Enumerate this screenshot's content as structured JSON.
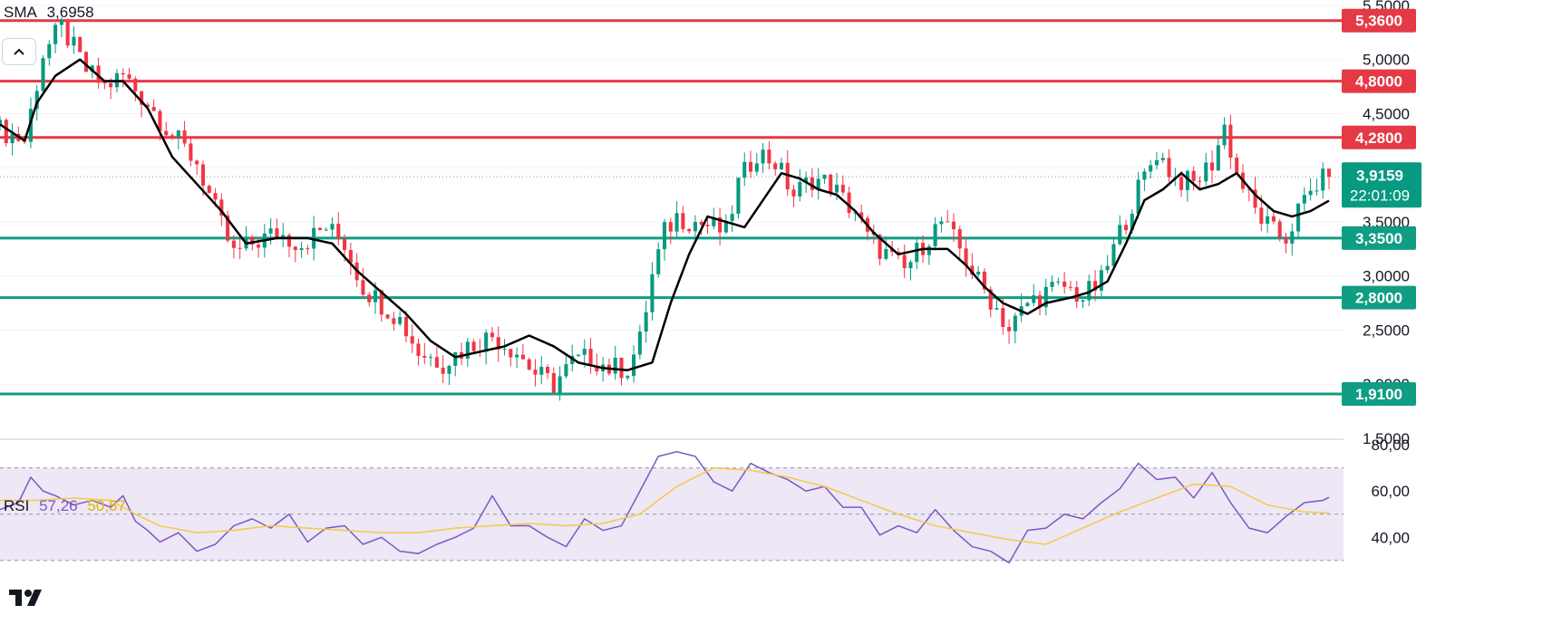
{
  "price_legend": {
    "name": "SMA",
    "value": "3,6958"
  },
  "rsi_legend": {
    "name": "RSI",
    "value": "57,26",
    "ma_value": "50,57",
    "value_color": "#7e57c2",
    "ma_color": "#f7c948"
  },
  "colors": {
    "up": "#089981",
    "down": "#f23645",
    "sma": "#000000",
    "resistance": "#e53945",
    "support": "#0f9d83",
    "rsi_line": "#7e57c2",
    "rsi_ma": "#f7c948",
    "rsi_band": "#ede7f6"
  },
  "icons": {
    "collapse": "chevron-up-icon",
    "logo": "tradingview-logo"
  },
  "chart_data": [
    {
      "type": "candlestick",
      "title": "",
      "ylim": [
        1.5,
        5.55
      ],
      "y_ticks": [
        "1,5000",
        "2,0000",
        "2,5000",
        "3,0000",
        "3,5000",
        "4,0000",
        "4,5000",
        "5,0000",
        "5,5000"
      ],
      "last_price": {
        "label": "3,9159",
        "countdown": "22:01:09",
        "value": 3.9159
      },
      "levels": [
        {
          "value": 5.36,
          "label": "5,3600",
          "kind": "resistance"
        },
        {
          "value": 4.8,
          "label": "4,8000",
          "kind": "resistance"
        },
        {
          "value": 4.28,
          "label": "4,2800",
          "kind": "resistance"
        },
        {
          "value": 3.35,
          "label": "3,3500",
          "kind": "support"
        },
        {
          "value": 2.8,
          "label": "2,8000",
          "kind": "support"
        },
        {
          "value": 1.91,
          "label": "1,9100",
          "kind": "support"
        }
      ],
      "close_path": [
        [
          0,
          4.35
        ],
        [
          4,
          4.25
        ],
        [
          7,
          5.05
        ],
        [
          10,
          5.3
        ],
        [
          14,
          4.9
        ],
        [
          17,
          4.75
        ],
        [
          20,
          4.85
        ],
        [
          24,
          4.6
        ],
        [
          28,
          4.3
        ],
        [
          32,
          4.05
        ],
        [
          35,
          3.6
        ],
        [
          38,
          3.2
        ],
        [
          41,
          3.3
        ],
        [
          45,
          3.4
        ],
        [
          49,
          3.3
        ],
        [
          53,
          3.45
        ],
        [
          56,
          3.3
        ],
        [
          59,
          2.9
        ],
        [
          62,
          2.75
        ],
        [
          65,
          2.6
        ],
        [
          68,
          2.3
        ],
        [
          72,
          2.2
        ],
        [
          76,
          2.35
        ],
        [
          80,
          2.45
        ],
        [
          84,
          2.3
        ],
        [
          87,
          2.1
        ],
        [
          90,
          2.0
        ],
        [
          93,
          2.2
        ],
        [
          96,
          2.25
        ],
        [
          99,
          2.15
        ],
        [
          102,
          2.15
        ],
        [
          104,
          2.4
        ],
        [
          106,
          3.0
        ],
        [
          108,
          3.4
        ],
        [
          110,
          3.55
        ],
        [
          113,
          3.5
        ],
        [
          116,
          3.45
        ],
        [
          118,
          3.4
        ],
        [
          120,
          3.85
        ],
        [
          123,
          4.15
        ],
        [
          126,
          4.05
        ],
        [
          129,
          3.75
        ],
        [
          132,
          3.9
        ],
        [
          135,
          3.85
        ],
        [
          137,
          3.7
        ],
        [
          139,
          3.6
        ],
        [
          141,
          3.35
        ],
        [
          144,
          3.2
        ],
        [
          147,
          3.05
        ],
        [
          150,
          3.3
        ],
        [
          153,
          3.5
        ],
        [
          156,
          3.25
        ],
        [
          159,
          2.95
        ],
        [
          162,
          2.7
        ],
        [
          164,
          2.5
        ],
        [
          167,
          2.75
        ],
        [
          170,
          2.85
        ],
        [
          173,
          2.9
        ],
        [
          176,
          2.8
        ],
        [
          179,
          2.95
        ],
        [
          182,
          3.4
        ],
        [
          185,
          3.8
        ],
        [
          188,
          4.15
        ],
        [
          191,
          3.9
        ],
        [
          194,
          3.85
        ],
        [
          197,
          4.05
        ],
        [
          199,
          4.38
        ],
        [
          201,
          3.95
        ],
        [
          204,
          3.6
        ],
        [
          207,
          3.4
        ],
        [
          209,
          3.35
        ],
        [
          211,
          3.6
        ],
        [
          214,
          3.85
        ],
        [
          216,
          3.9159
        ]
      ],
      "sma_path": [
        [
          0,
          4.4
        ],
        [
          4,
          4.25
        ],
        [
          6,
          4.6
        ],
        [
          9,
          4.85
        ],
        [
          13,
          5.0
        ],
        [
          17,
          4.8
        ],
        [
          20,
          4.8
        ],
        [
          24,
          4.55
        ],
        [
          28,
          4.1
        ],
        [
          32,
          3.85
        ],
        [
          36,
          3.6
        ],
        [
          40,
          3.3
        ],
        [
          45,
          3.35
        ],
        [
          50,
          3.35
        ],
        [
          54,
          3.3
        ],
        [
          58,
          3.05
        ],
        [
          62,
          2.85
        ],
        [
          66,
          2.65
        ],
        [
          70,
          2.4
        ],
        [
          74,
          2.25
        ],
        [
          78,
          2.3
        ],
        [
          82,
          2.35
        ],
        [
          86,
          2.45
        ],
        [
          90,
          2.35
        ],
        [
          94,
          2.2
        ],
        [
          98,
          2.15
        ],
        [
          102,
          2.13
        ],
        [
          106,
          2.2
        ],
        [
          109,
          2.75
        ],
        [
          112,
          3.2
        ],
        [
          115,
          3.55
        ],
        [
          118,
          3.5
        ],
        [
          121,
          3.45
        ],
        [
          124,
          3.7
        ],
        [
          127,
          3.95
        ],
        [
          130,
          3.9
        ],
        [
          133,
          3.8
        ],
        [
          136,
          3.75
        ],
        [
          139,
          3.6
        ],
        [
          142,
          3.4
        ],
        [
          146,
          3.2
        ],
        [
          150,
          3.25
        ],
        [
          154,
          3.25
        ],
        [
          157,
          3.1
        ],
        [
          160,
          2.9
        ],
        [
          163,
          2.75
        ],
        [
          167,
          2.65
        ],
        [
          170,
          2.75
        ],
        [
          174,
          2.8
        ],
        [
          177,
          2.85
        ],
        [
          180,
          2.95
        ],
        [
          183,
          3.3
        ],
        [
          186,
          3.7
        ],
        [
          189,
          3.8
        ],
        [
          192,
          3.95
        ],
        [
          195,
          3.8
        ],
        [
          198,
          3.85
        ],
        [
          201,
          3.95
        ],
        [
          204,
          3.75
        ],
        [
          207,
          3.6
        ],
        [
          210,
          3.55
        ],
        [
          213,
          3.6
        ],
        [
          216,
          3.6958
        ]
      ]
    },
    {
      "type": "line",
      "title": "",
      "ylim": [
        28,
        82
      ],
      "y_ticks": [
        "40,00",
        "60,00",
        "80,00"
      ],
      "bands": [
        30,
        50,
        70
      ],
      "series": [
        {
          "name": "RSI",
          "values": [
            [
              0,
              52
            ],
            [
              3,
              55
            ],
            [
              5,
              66
            ],
            [
              7,
              60
            ],
            [
              9,
              58
            ],
            [
              12,
              54
            ],
            [
              15,
              56
            ],
            [
              18,
              53
            ],
            [
              20,
              58
            ],
            [
              22,
              47
            ],
            [
              24,
              43
            ],
            [
              26,
              38
            ],
            [
              29,
              42
            ],
            [
              32,
              34
            ],
            [
              35,
              37
            ],
            [
              38,
              45
            ],
            [
              41,
              48
            ],
            [
              44,
              44
            ],
            [
              47,
              50
            ],
            [
              50,
              38
            ],
            [
              53,
              44
            ],
            [
              56,
              45
            ],
            [
              59,
              37
            ],
            [
              62,
              40
            ],
            [
              65,
              34
            ],
            [
              68,
              33
            ],
            [
              71,
              37
            ],
            [
              74,
              40
            ],
            [
              77,
              44
            ],
            [
              80,
              58
            ],
            [
              83,
              45
            ],
            [
              86,
              45
            ],
            [
              89,
              40
            ],
            [
              92,
              36
            ],
            [
              95,
              48
            ],
            [
              98,
              43
            ],
            [
              101,
              45
            ],
            [
              104,
              60
            ],
            [
              107,
              75
            ],
            [
              110,
              77
            ],
            [
              113,
              75
            ],
            [
              116,
              64
            ],
            [
              119,
              60
            ],
            [
              122,
              72
            ],
            [
              125,
              68
            ],
            [
              128,
              65
            ],
            [
              131,
              60
            ],
            [
              134,
              62
            ],
            [
              137,
              53
            ],
            [
              140,
              53
            ],
            [
              143,
              41
            ],
            [
              146,
              45
            ],
            [
              149,
              42
            ],
            [
              152,
              52
            ],
            [
              155,
              43
            ],
            [
              158,
              36
            ],
            [
              161,
              34
            ],
            [
              164,
              29
            ],
            [
              167,
              43
            ],
            [
              170,
              44
            ],
            [
              173,
              50
            ],
            [
              176,
              48
            ],
            [
              179,
              55
            ],
            [
              182,
              61
            ],
            [
              185,
              72
            ],
            [
              188,
              65
            ],
            [
              191,
              66
            ],
            [
              194,
              57
            ],
            [
              197,
              68
            ],
            [
              200,
              55
            ],
            [
              203,
              44
            ],
            [
              206,
              42
            ],
            [
              209,
              49
            ],
            [
              212,
              55
            ],
            [
              215,
              56
            ],
            [
              216,
              57.26
            ]
          ]
        },
        {
          "name": "",
          "values": [
            [
              0,
              56
            ],
            [
              6,
              56
            ],
            [
              12,
              57
            ],
            [
              18,
              56
            ],
            [
              22,
              50
            ],
            [
              26,
              45
            ],
            [
              32,
              42
            ],
            [
              38,
              43
            ],
            [
              44,
              45
            ],
            [
              50,
              44
            ],
            [
              56,
              43
            ],
            [
              62,
              42
            ],
            [
              68,
              42
            ],
            [
              74,
              44
            ],
            [
              80,
              45
            ],
            [
              86,
              46
            ],
            [
              92,
              45
            ],
            [
              98,
              46
            ],
            [
              104,
              50
            ],
            [
              110,
              62
            ],
            [
              116,
              70
            ],
            [
              122,
              69
            ],
            [
              128,
              66
            ],
            [
              134,
              62
            ],
            [
              140,
              56
            ],
            [
              146,
              50
            ],
            [
              152,
              45
            ],
            [
              158,
              42
            ],
            [
              164,
              39
            ],
            [
              170,
              37
            ],
            [
              176,
              44
            ],
            [
              182,
              51
            ],
            [
              188,
              57
            ],
            [
              194,
              63
            ],
            [
              200,
              62
            ],
            [
              206,
              54
            ],
            [
              212,
              51
            ],
            [
              216,
              50.57
            ]
          ]
        }
      ]
    }
  ]
}
